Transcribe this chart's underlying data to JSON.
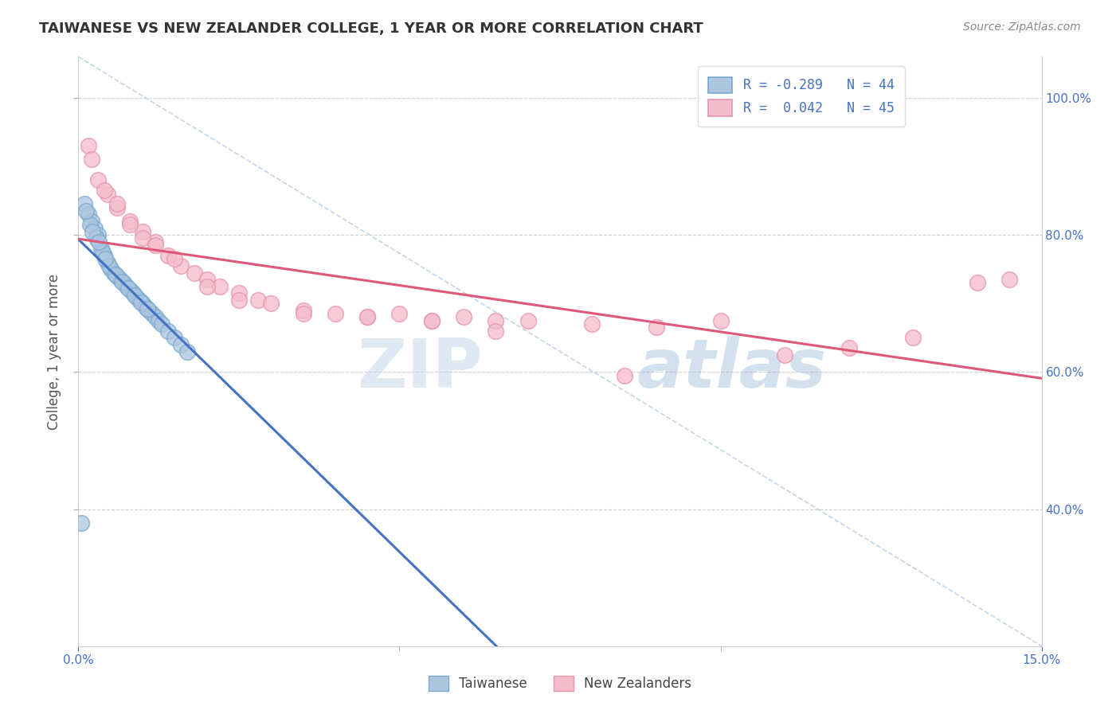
{
  "title": "TAIWANESE VS NEW ZEALANDER COLLEGE, 1 YEAR OR MORE CORRELATION CHART",
  "source": "Source: ZipAtlas.com",
  "ylabel": "College, 1 year or more",
  "xlim": [
    0.0,
    15.0
  ],
  "ylim": [
    20.0,
    106.0
  ],
  "color_taiwanese": "#adc6e0",
  "color_taiwanese_edge": "#7aaacf",
  "color_nz": "#f5bccb",
  "color_nz_edge": "#e896b0",
  "color_line_taiwanese": "#4472c4",
  "color_line_nz": "#e05878",
  "legend_label1": "R = -0.289   N = 44",
  "legend_label2": "R =  0.042   N = 45",
  "legend_bottom1": "Taiwanese",
  "legend_bottom2": "New Zealanders",
  "ytick_right_vals": [
    40.0,
    60.0,
    80.0,
    100.0
  ],
  "ytick_right_labels": [
    "40.0%",
    "60.0%",
    "80.0%",
    "100.0%"
  ],
  "xtick_vals": [
    0.0,
    15.0
  ],
  "xtick_labels": [
    "0.0%",
    "15.0%"
  ],
  "watermark_zip": "ZIP",
  "watermark_atlas": "atlas",
  "background_color": "#ffffff",
  "grid_color": "#cccccc",
  "taiwanese_x": [
    0.05,
    0.1,
    0.15,
    0.2,
    0.25,
    0.3,
    0.35,
    0.4,
    0.45,
    0.5,
    0.55,
    0.6,
    0.65,
    0.7,
    0.75,
    0.8,
    0.85,
    0.9,
    0.95,
    1.0,
    1.05,
    1.1,
    1.15,
    1.2,
    1.25,
    1.3,
    1.4,
    1.5,
    1.6,
    1.7,
    0.18,
    0.28,
    0.38,
    0.48,
    0.58,
    0.68,
    0.78,
    0.88,
    0.98,
    1.08,
    0.22,
    0.32,
    0.42,
    0.12
  ],
  "taiwanese_y": [
    38.0,
    84.5,
    83.0,
    82.0,
    81.0,
    80.0,
    78.0,
    77.0,
    76.0,
    75.0,
    74.5,
    74.0,
    73.5,
    73.0,
    72.5,
    72.0,
    71.5,
    71.0,
    70.5,
    70.0,
    69.5,
    69.0,
    68.5,
    68.0,
    67.5,
    67.0,
    66.0,
    65.0,
    64.0,
    63.0,
    81.5,
    79.5,
    77.5,
    75.5,
    74.2,
    73.2,
    72.2,
    71.2,
    70.2,
    69.2,
    80.5,
    79.0,
    76.5,
    83.5
  ],
  "nz_x": [
    0.15,
    0.3,
    0.45,
    0.6,
    0.8,
    1.0,
    1.2,
    1.4,
    1.6,
    1.8,
    2.0,
    2.2,
    2.5,
    2.8,
    3.0,
    3.5,
    4.0,
    4.5,
    5.0,
    5.5,
    6.0,
    6.5,
    7.0,
    8.0,
    9.0,
    10.0,
    11.0,
    12.0,
    13.0,
    14.0,
    0.2,
    0.4,
    0.6,
    0.8,
    1.0,
    1.2,
    1.5,
    2.0,
    2.5,
    3.5,
    4.5,
    5.5,
    6.5,
    8.5,
    14.5
  ],
  "nz_y": [
    93.0,
    88.0,
    86.0,
    84.0,
    82.0,
    80.5,
    79.0,
    77.0,
    75.5,
    74.5,
    73.5,
    72.5,
    71.5,
    70.5,
    70.0,
    69.0,
    68.5,
    68.0,
    68.5,
    67.5,
    68.0,
    67.5,
    67.5,
    67.0,
    66.5,
    67.5,
    62.5,
    63.5,
    65.0,
    73.0,
    91.0,
    86.5,
    84.5,
    81.5,
    79.5,
    78.5,
    76.5,
    72.5,
    70.5,
    68.5,
    68.0,
    67.5,
    66.0,
    59.5,
    73.5
  ],
  "ref_line_x": [
    0.0,
    15.0
  ],
  "ref_line_y": [
    106.0,
    20.0
  ]
}
